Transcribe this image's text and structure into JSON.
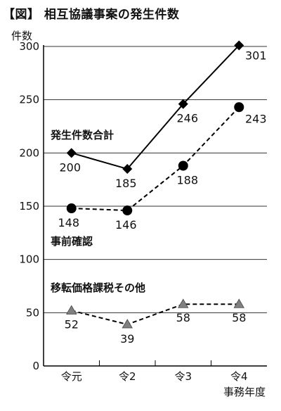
{
  "title": "【図】 相互協議事案の発生件数",
  "chart_data": {
    "type": "line",
    "ylabel": "件数",
    "xlabel": "事務年度",
    "ylim": [
      0,
      300
    ],
    "yticks": [
      0,
      50,
      100,
      150,
      200,
      250,
      300
    ],
    "grid": true,
    "categories": [
      "令元",
      "令2",
      "令3",
      "令4"
    ],
    "series": [
      {
        "name": "発生件数合計",
        "values": [
          200,
          185,
          246,
          301
        ],
        "marker": "diamond",
        "line": "solid",
        "color": "#000000"
      },
      {
        "name": "事前確認",
        "values": [
          148,
          146,
          188,
          243
        ],
        "marker": "circle",
        "line": "dashed",
        "color": "#000000"
      },
      {
        "name": "移転価格課税その他",
        "values": [
          52,
          39,
          58,
          58
        ],
        "marker": "triangle",
        "line": "dashed",
        "color": "#808080"
      }
    ]
  }
}
